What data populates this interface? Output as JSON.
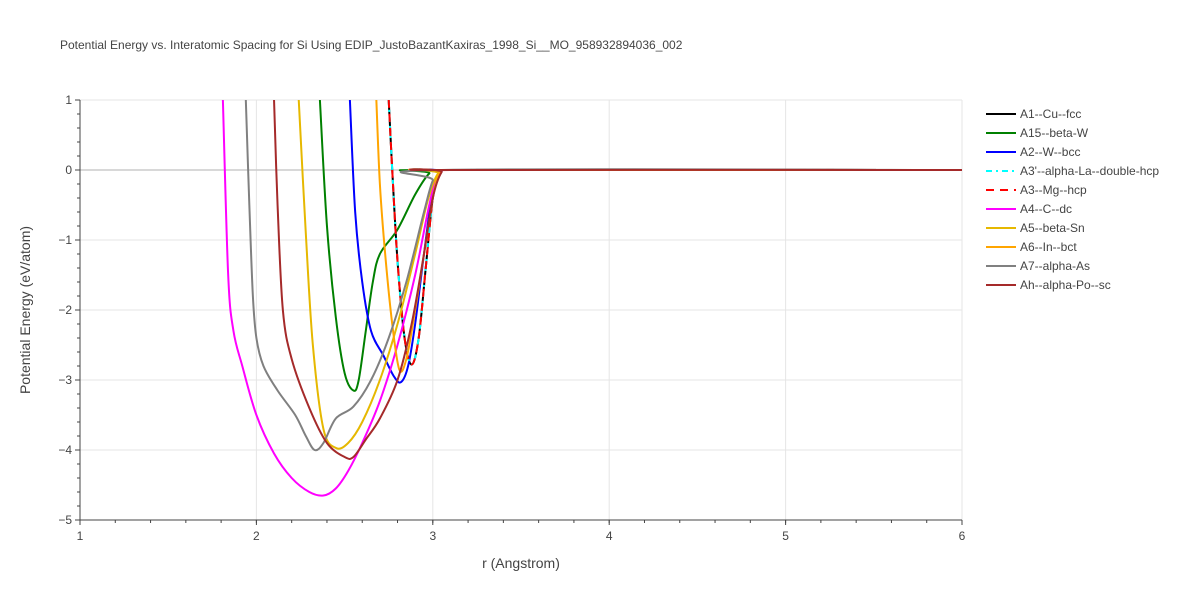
{
  "chart_data": {
    "type": "line",
    "title": "Potential Energy vs. Interatomic Spacing for Si Using EDIP_JustoBazantKaxiras_1998_Si__MO_958932894036_002",
    "xlabel": "r (Angstrom)",
    "ylabel": "Potential Energy (eV/atom)",
    "xlim": [
      1,
      6
    ],
    "ylim": [
      -5,
      1
    ],
    "x_ticks": [
      1,
      2,
      3,
      4,
      5,
      6
    ],
    "y_ticks": [
      1,
      0,
      -1,
      -2,
      -3,
      -4,
      -5
    ],
    "y_tick_labels": [
      "1",
      "0",
      "−1",
      "−2",
      "−3",
      "−4",
      "−5"
    ],
    "grid": true,
    "legend_position": "right",
    "series": [
      {
        "name": "A1--Cu--fcc",
        "color": "#000000",
        "dash": "solid",
        "points": [
          [
            2.75,
            1
          ],
          [
            2.77,
            0
          ],
          [
            2.8,
            -1.3
          ],
          [
            2.84,
            -2.4
          ],
          [
            2.88,
            -2.78
          ],
          [
            2.92,
            -2.4
          ],
          [
            2.96,
            -1.4
          ],
          [
            3.0,
            -0.4
          ],
          [
            3.04,
            -0.03
          ],
          [
            3.1,
            0
          ],
          [
            6,
            0
          ]
        ]
      },
      {
        "name": "A15--beta-W",
        "color": "#008000",
        "dash": "solid",
        "points": [
          [
            2.36,
            1
          ],
          [
            2.4,
            -0.8
          ],
          [
            2.45,
            -2.1
          ],
          [
            2.5,
            -2.9
          ],
          [
            2.55,
            -3.15
          ],
          [
            2.58,
            -3.0
          ],
          [
            2.62,
            -2.3
          ],
          [
            2.66,
            -1.6
          ],
          [
            2.7,
            -1.2
          ],
          [
            2.8,
            -0.85
          ],
          [
            2.9,
            -0.35
          ],
          [
            2.98,
            -0.05
          ],
          [
            3.05,
            0
          ],
          [
            6,
            0
          ]
        ]
      },
      {
        "name": "A2--W--bcc",
        "color": "#0000ff",
        "dash": "solid",
        "points": [
          [
            2.53,
            1
          ],
          [
            2.56,
            -0.6
          ],
          [
            2.6,
            -1.6
          ],
          [
            2.65,
            -2.3
          ],
          [
            2.72,
            -2.65
          ],
          [
            2.78,
            -2.95
          ],
          [
            2.82,
            -3.03
          ],
          [
            2.86,
            -2.8
          ],
          [
            2.9,
            -2.2
          ],
          [
            2.95,
            -1.2
          ],
          [
            3.0,
            -0.3
          ],
          [
            3.05,
            -0.02
          ],
          [
            3.1,
            0
          ],
          [
            6,
            0
          ]
        ]
      },
      {
        "name": "A3'--alpha-La--double-hcp",
        "color": "#00ffff",
        "dash": "6,4,2,4",
        "points": [
          [
            2.75,
            1
          ],
          [
            2.77,
            0
          ],
          [
            2.8,
            -1.3
          ],
          [
            2.84,
            -2.4
          ],
          [
            2.88,
            -2.78
          ],
          [
            2.92,
            -2.4
          ],
          [
            2.96,
            -1.4
          ],
          [
            3.0,
            -0.4
          ],
          [
            3.04,
            -0.03
          ],
          [
            3.1,
            0
          ],
          [
            6,
            0
          ]
        ]
      },
      {
        "name": "A3--Mg--hcp",
        "color": "#ff0000",
        "dash": "8,6",
        "points": [
          [
            2.75,
            1
          ],
          [
            2.77,
            0
          ],
          [
            2.8,
            -1.3
          ],
          [
            2.84,
            -2.4
          ],
          [
            2.88,
            -2.78
          ],
          [
            2.92,
            -2.4
          ],
          [
            2.96,
            -1.4
          ],
          [
            3.0,
            -0.4
          ],
          [
            3.04,
            -0.03
          ],
          [
            3.1,
            0
          ],
          [
            6,
            0
          ]
        ]
      },
      {
        "name": "A4--C--dc",
        "color": "#ff00ff",
        "dash": "solid",
        "points": [
          [
            1.81,
            1
          ],
          [
            1.84,
            -1.5
          ],
          [
            1.87,
            -2.3
          ],
          [
            1.92,
            -2.8
          ],
          [
            2.0,
            -3.5
          ],
          [
            2.1,
            -4.05
          ],
          [
            2.2,
            -4.4
          ],
          [
            2.3,
            -4.6
          ],
          [
            2.38,
            -4.65
          ],
          [
            2.45,
            -4.55
          ],
          [
            2.52,
            -4.3
          ],
          [
            2.6,
            -3.9
          ],
          [
            2.7,
            -3.3
          ],
          [
            2.8,
            -2.5
          ],
          [
            2.9,
            -1.5
          ],
          [
            2.98,
            -0.5
          ],
          [
            3.03,
            -0.05
          ],
          [
            3.1,
            0
          ],
          [
            6,
            0
          ]
        ]
      },
      {
        "name": "A5--beta-Sn",
        "color": "#e6b800",
        "dash": "solid",
        "points": [
          [
            2.24,
            1
          ],
          [
            2.28,
            -0.9
          ],
          [
            2.32,
            -2.5
          ],
          [
            2.38,
            -3.7
          ],
          [
            2.45,
            -3.97
          ],
          [
            2.52,
            -3.9
          ],
          [
            2.6,
            -3.6
          ],
          [
            2.7,
            -3.0
          ],
          [
            2.8,
            -2.2
          ],
          [
            2.9,
            -1.2
          ],
          [
            2.97,
            -0.45
          ],
          [
            3.03,
            -0.05
          ],
          [
            3.1,
            0
          ],
          [
            6,
            0
          ]
        ]
      },
      {
        "name": "A6--In--bct",
        "color": "#ffa500",
        "dash": "solid",
        "points": [
          [
            2.68,
            1
          ],
          [
            2.7,
            -0.2
          ],
          [
            2.73,
            -1.2
          ],
          [
            2.77,
            -2.2
          ],
          [
            2.81,
            -2.85
          ],
          [
            2.85,
            -2.7
          ],
          [
            2.9,
            -2.0
          ],
          [
            2.95,
            -1.2
          ],
          [
            3.0,
            -0.4
          ],
          [
            3.04,
            -0.03
          ],
          [
            3.1,
            0
          ],
          [
            6,
            0
          ]
        ]
      },
      {
        "name": "A7--alpha-As",
        "color": "#808080",
        "dash": "solid",
        "points": [
          [
            1.94,
            1
          ],
          [
            1.96,
            -0.5
          ],
          [
            1.98,
            -1.8
          ],
          [
            2.0,
            -2.4
          ],
          [
            2.04,
            -2.8
          ],
          [
            2.12,
            -3.15
          ],
          [
            2.22,
            -3.5
          ],
          [
            2.28,
            -3.8
          ],
          [
            2.33,
            -4.0
          ],
          [
            2.38,
            -3.9
          ],
          [
            2.45,
            -3.55
          ],
          [
            2.55,
            -3.38
          ],
          [
            2.65,
            -3.0
          ],
          [
            2.75,
            -2.4
          ],
          [
            2.85,
            -1.6
          ],
          [
            2.95,
            -0.6
          ],
          [
            3.0,
            -0.15
          ],
          [
            3.05,
            0
          ],
          [
            6,
            0
          ]
        ]
      },
      {
        "name": "Ah--alpha-Po--sc",
        "color": "#a52a2a",
        "dash": "solid",
        "points": [
          [
            2.1,
            1
          ],
          [
            2.12,
            -0.5
          ],
          [
            2.15,
            -2.0
          ],
          [
            2.2,
            -2.7
          ],
          [
            2.3,
            -3.4
          ],
          [
            2.4,
            -3.9
          ],
          [
            2.5,
            -4.1
          ],
          [
            2.55,
            -4.1
          ],
          [
            2.62,
            -3.85
          ],
          [
            2.7,
            -3.55
          ],
          [
            2.8,
            -3.0
          ],
          [
            2.88,
            -2.2
          ],
          [
            2.95,
            -1.2
          ],
          [
            3.0,
            -0.4
          ],
          [
            3.05,
            -0.03
          ],
          [
            3.1,
            0
          ],
          [
            6,
            0
          ]
        ]
      }
    ]
  }
}
